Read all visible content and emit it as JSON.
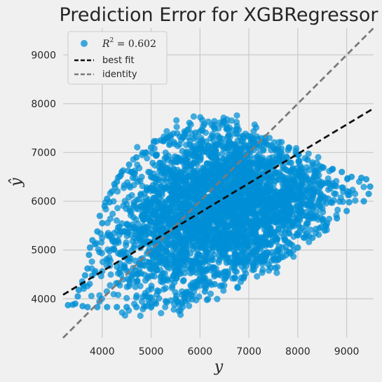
{
  "chart_data": {
    "type": "scatter",
    "title": "Prediction Error for XGBRegressor",
    "xlabel": "y",
    "ylabel": "ŷ",
    "xlim": [
      3200,
      9550
    ],
    "ylim": [
      3200,
      9550
    ],
    "xticks": [
      4000,
      5000,
      6000,
      7000,
      8000,
      9000
    ],
    "yticks": [
      4000,
      5000,
      6000,
      7000,
      8000,
      9000
    ],
    "grid": true,
    "legend": {
      "placement": "top-left",
      "entries": [
        {
          "label": "R",
          "sup": "2",
          "value": " = 0.602",
          "kind": "marker"
        },
        {
          "label": "best fit",
          "kind": "dashed-line"
        },
        {
          "label": "identity",
          "kind": "dashed-line"
        }
      ]
    },
    "colors": {
      "points": "#008fd5",
      "best_fit": "#111111",
      "identity": "#7a7a7a",
      "grid": "#cbcbcb",
      "background": "#f0f0f0"
    },
    "series": [
      {
        "name": "R² = 0.602",
        "note_density": "dense band of several thousand points",
        "points": [
          [
            3300,
            3870
          ],
          [
            3450,
            3900
          ],
          [
            3500,
            4050
          ],
          [
            3520,
            4180
          ],
          [
            3600,
            4300
          ],
          [
            3650,
            4480
          ],
          [
            3700,
            4620
          ],
          [
            3730,
            4900
          ],
          [
            3750,
            5050
          ],
          [
            3800,
            5200
          ],
          [
            3850,
            5120
          ],
          [
            3900,
            5380
          ],
          [
            3950,
            5700
          ],
          [
            4000,
            5550
          ],
          [
            4050,
            5900
          ],
          [
            4100,
            6050
          ],
          [
            4150,
            5980
          ],
          [
            4200,
            6200
          ],
          [
            4250,
            6350
          ],
          [
            4300,
            6400
          ],
          [
            4400,
            6600
          ],
          [
            4550,
            6750
          ],
          [
            4700,
            6900
          ],
          [
            4900,
            7000
          ],
          [
            5000,
            7100
          ],
          [
            5200,
            7250
          ],
          [
            5400,
            7350
          ],
          [
            5700,
            7400
          ],
          [
            6050,
            7450
          ],
          [
            6300,
            7480
          ],
          [
            6550,
            7500
          ],
          [
            6750,
            7480
          ],
          [
            6900,
            7300
          ],
          [
            7100,
            7200
          ],
          [
            7400,
            7150
          ],
          [
            7600,
            7100
          ],
          [
            7800,
            7050
          ],
          [
            8000,
            6950
          ],
          [
            8200,
            6850
          ],
          [
            8500,
            6700
          ],
          [
            8700,
            6650
          ],
          [
            8900,
            6600
          ],
          [
            9100,
            6500
          ],
          [
            9300,
            6480
          ],
          [
            9400,
            6450
          ],
          [
            9480,
            6300
          ],
          [
            9450,
            6150
          ],
          [
            9350,
            6000
          ],
          [
            9050,
            5980
          ],
          [
            9000,
            5800
          ],
          [
            8800,
            5650
          ],
          [
            8600,
            5550
          ],
          [
            8550,
            5400
          ],
          [
            8300,
            5250
          ],
          [
            8000,
            5050
          ],
          [
            7850,
            4930
          ],
          [
            7600,
            4800
          ],
          [
            7400,
            4700
          ],
          [
            7250,
            4820
          ],
          [
            7100,
            4720
          ],
          [
            6900,
            4450
          ],
          [
            6700,
            4650
          ],
          [
            6500,
            4400
          ],
          [
            6300,
            4300
          ],
          [
            6100,
            4150
          ],
          [
            5900,
            4250
          ],
          [
            5700,
            4100
          ],
          [
            5500,
            4000
          ],
          [
            5300,
            3950
          ],
          [
            5100,
            3900
          ],
          [
            4900,
            3850
          ],
          [
            4700,
            3830
          ],
          [
            4500,
            3830
          ],
          [
            4300,
            3830
          ],
          [
            4100,
            3830
          ],
          [
            3900,
            3830
          ],
          [
            3700,
            3830
          ],
          [
            3600,
            3850
          ],
          [
            3400,
            3880
          ]
        ]
      }
    ],
    "best_fit": {
      "slope": 0.6017,
      "intercept": 2157
    },
    "identity": {
      "slope": 1,
      "intercept": 0
    }
  }
}
